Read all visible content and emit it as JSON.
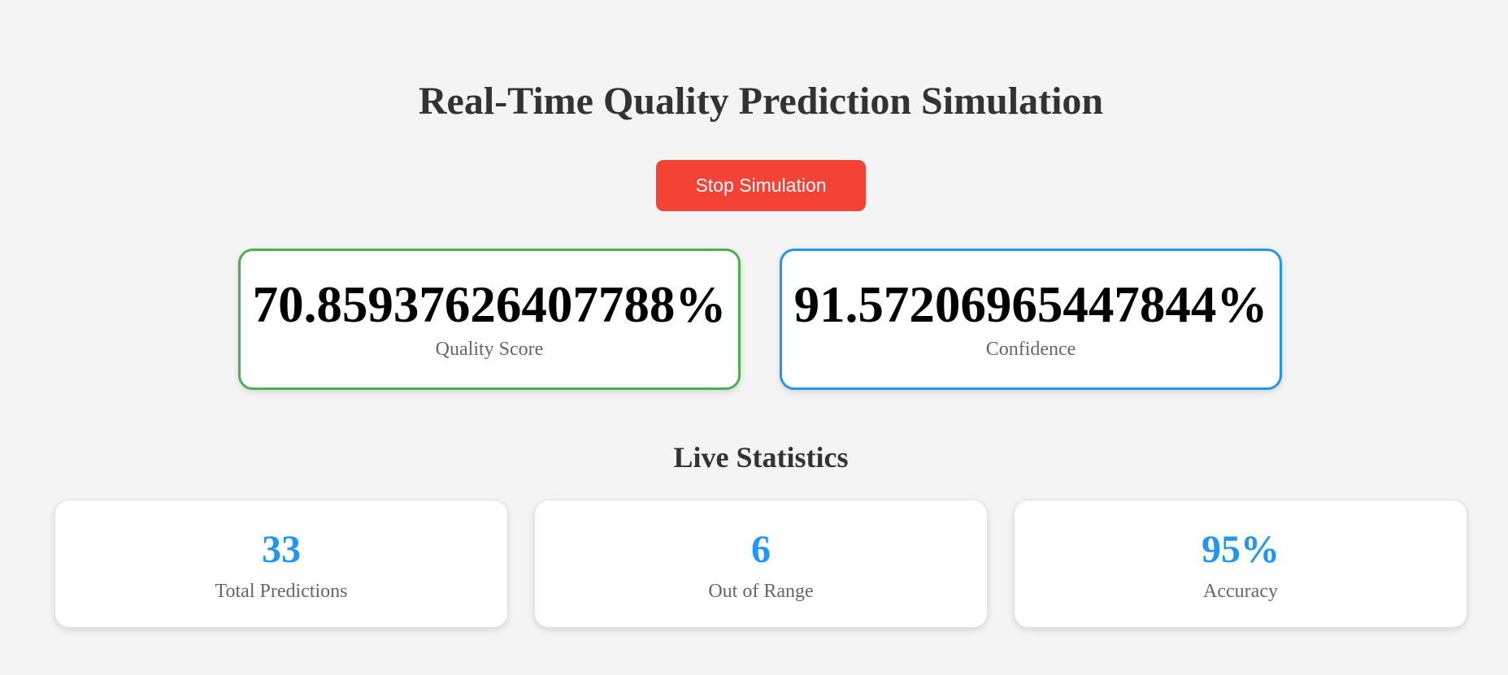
{
  "title": "Real-Time Quality Prediction Simulation",
  "controls": {
    "stop_label": "Stop Simulation",
    "stop_color": "#f44336"
  },
  "metrics": [
    {
      "value": "70.85937626407788%",
      "label": "Quality Score",
      "border_color": "#4caf50"
    },
    {
      "value": "91.57206965447844%",
      "label": "Confidence",
      "border_color": "#2196f3"
    }
  ],
  "stats": {
    "heading": "Live Statistics",
    "value_color": "#2196f3",
    "items": [
      {
        "value": "33",
        "label": "Total Predictions"
      },
      {
        "value": "6",
        "label": "Out of Range"
      },
      {
        "value": "95%",
        "label": "Accuracy"
      }
    ]
  }
}
